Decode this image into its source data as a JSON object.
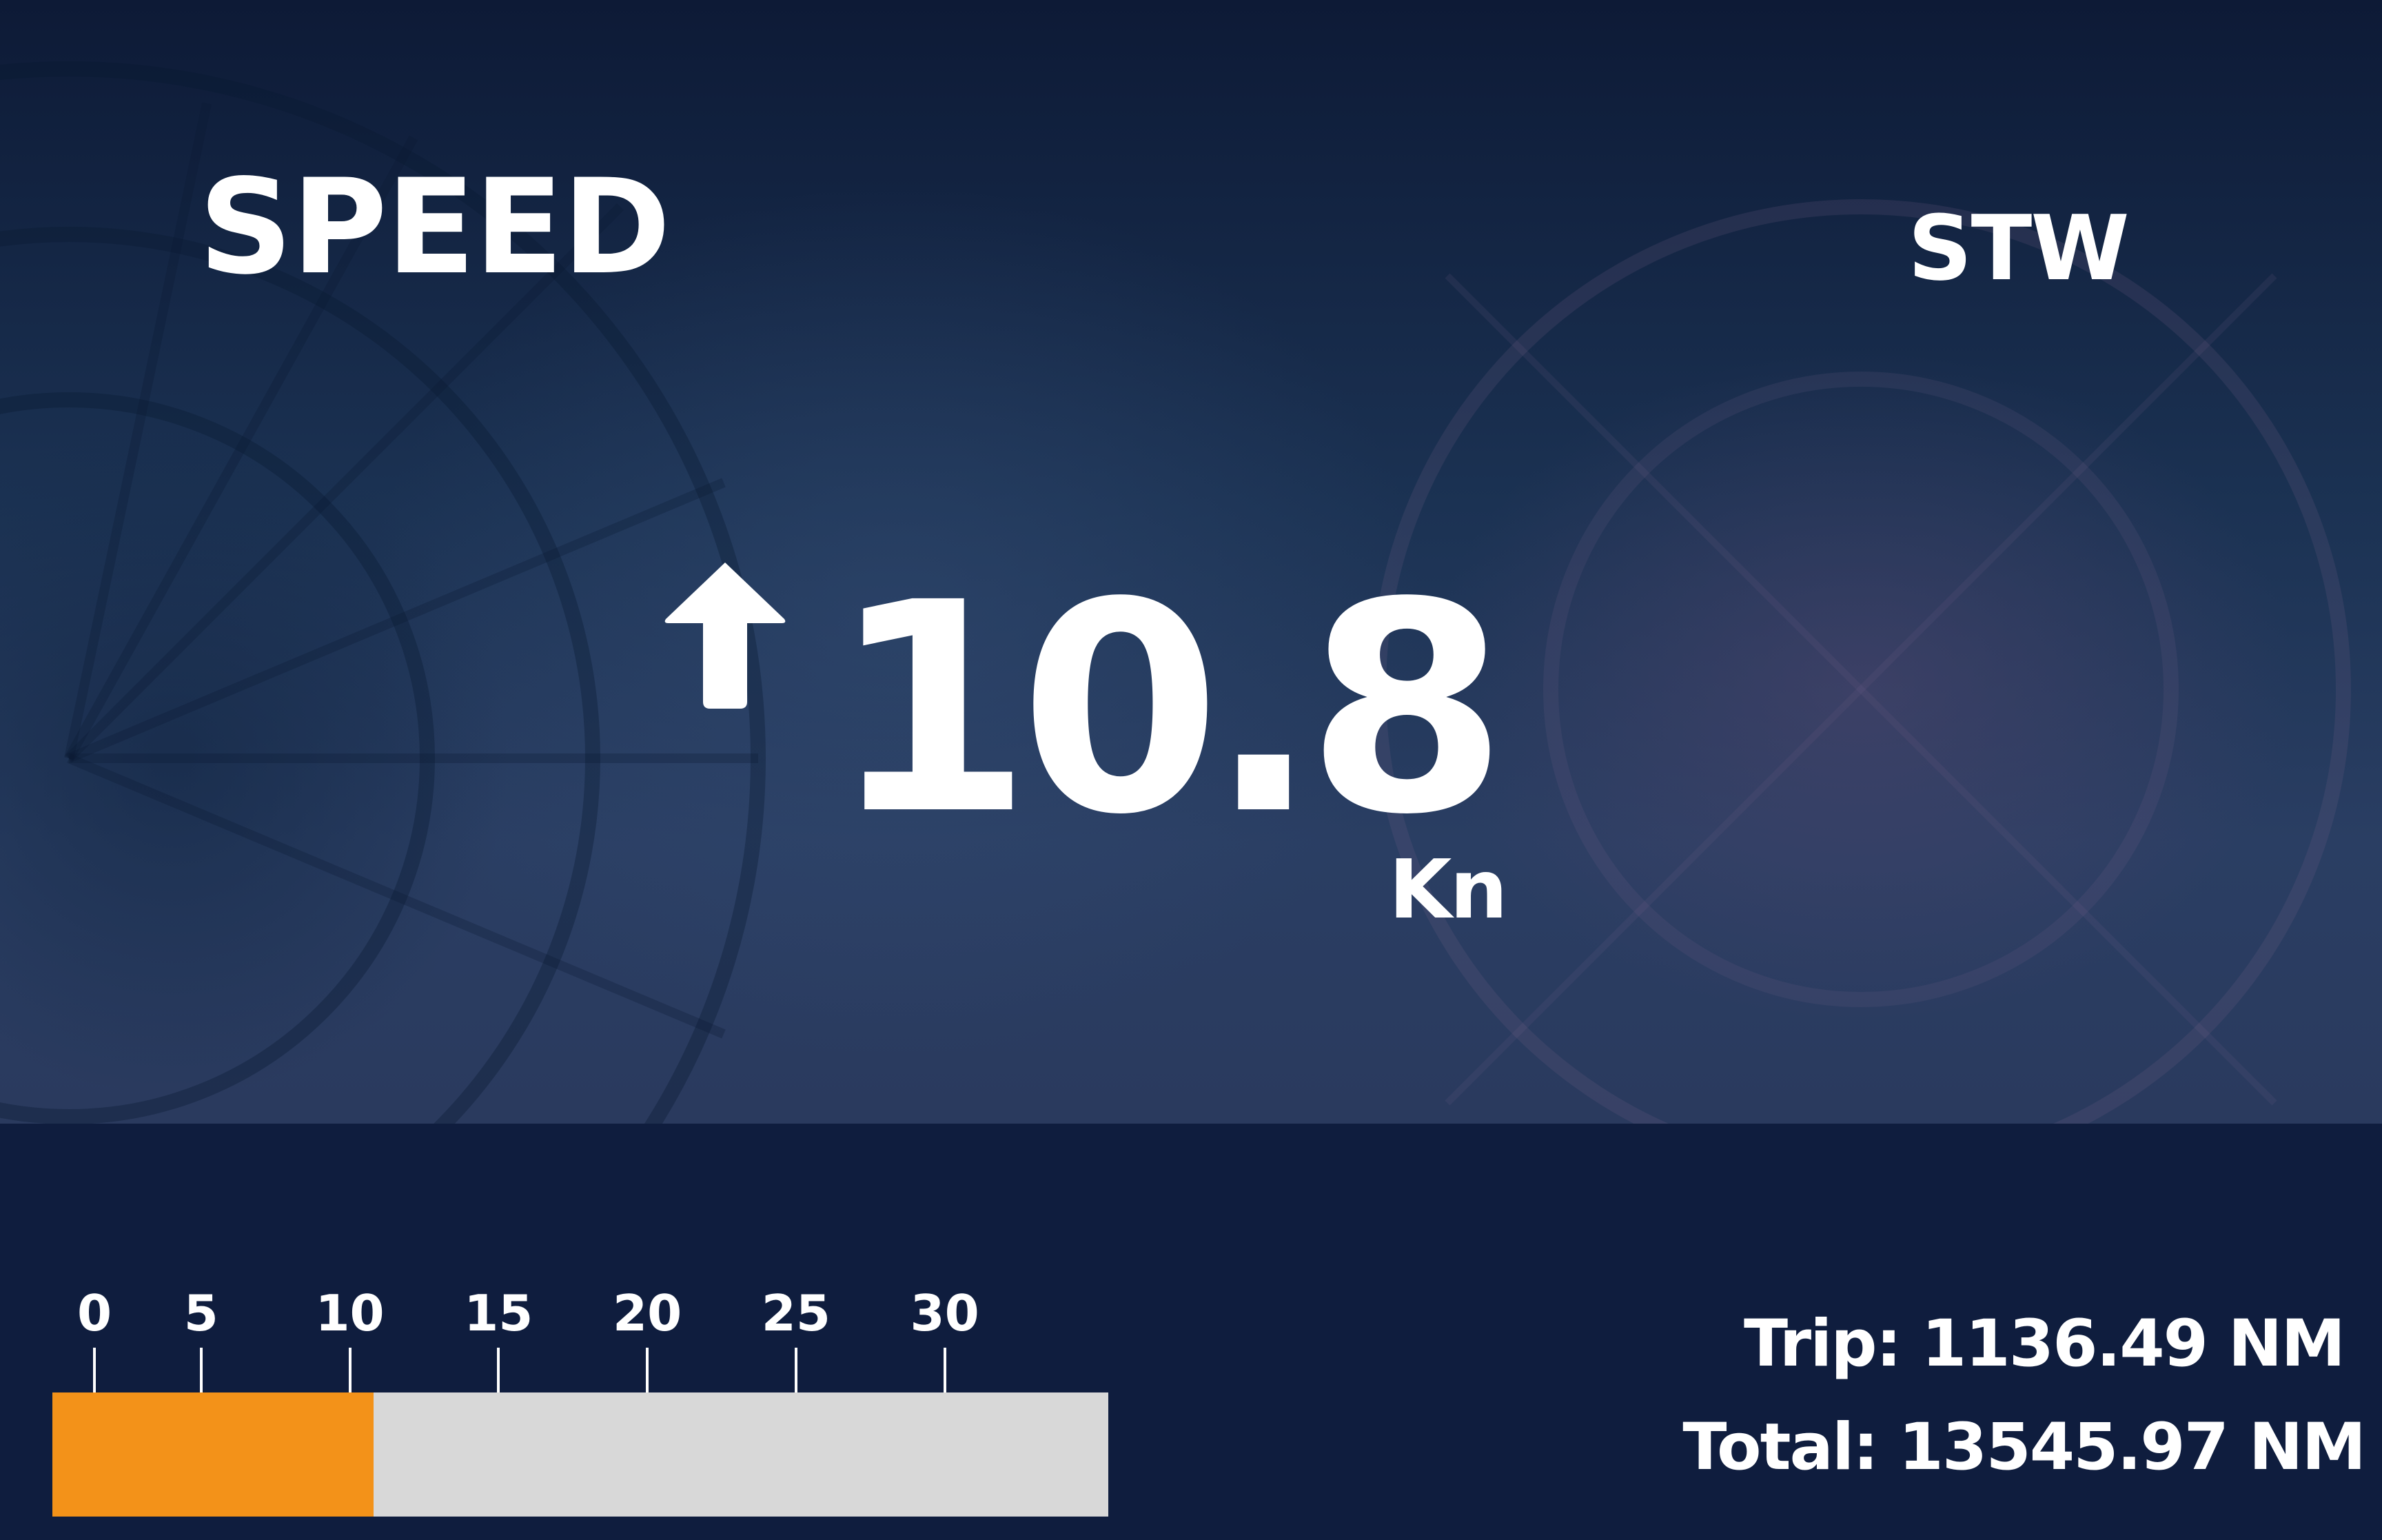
{
  "instrument": {
    "title": "SPEED",
    "mode": "STW",
    "value": "10.8",
    "unit": "Kn",
    "trend_icon": "arrow-up-icon"
  },
  "scale": {
    "min": 0,
    "max": 35.5,
    "current": 10.8,
    "tick_labels": [
      "0",
      "5",
      "10",
      "15",
      "20",
      "25",
      "30"
    ],
    "ticks": [
      0,
      5,
      10,
      15,
      20,
      25,
      30
    ],
    "fill_color": "#f39219",
    "track_color": "#d8d8d8"
  },
  "distance": {
    "trip": "Trip: 1136.49 NM",
    "total": "Total: 13545.97 NM"
  },
  "colors": {
    "background": "#0f1d3e",
    "text": "#ffffff"
  }
}
